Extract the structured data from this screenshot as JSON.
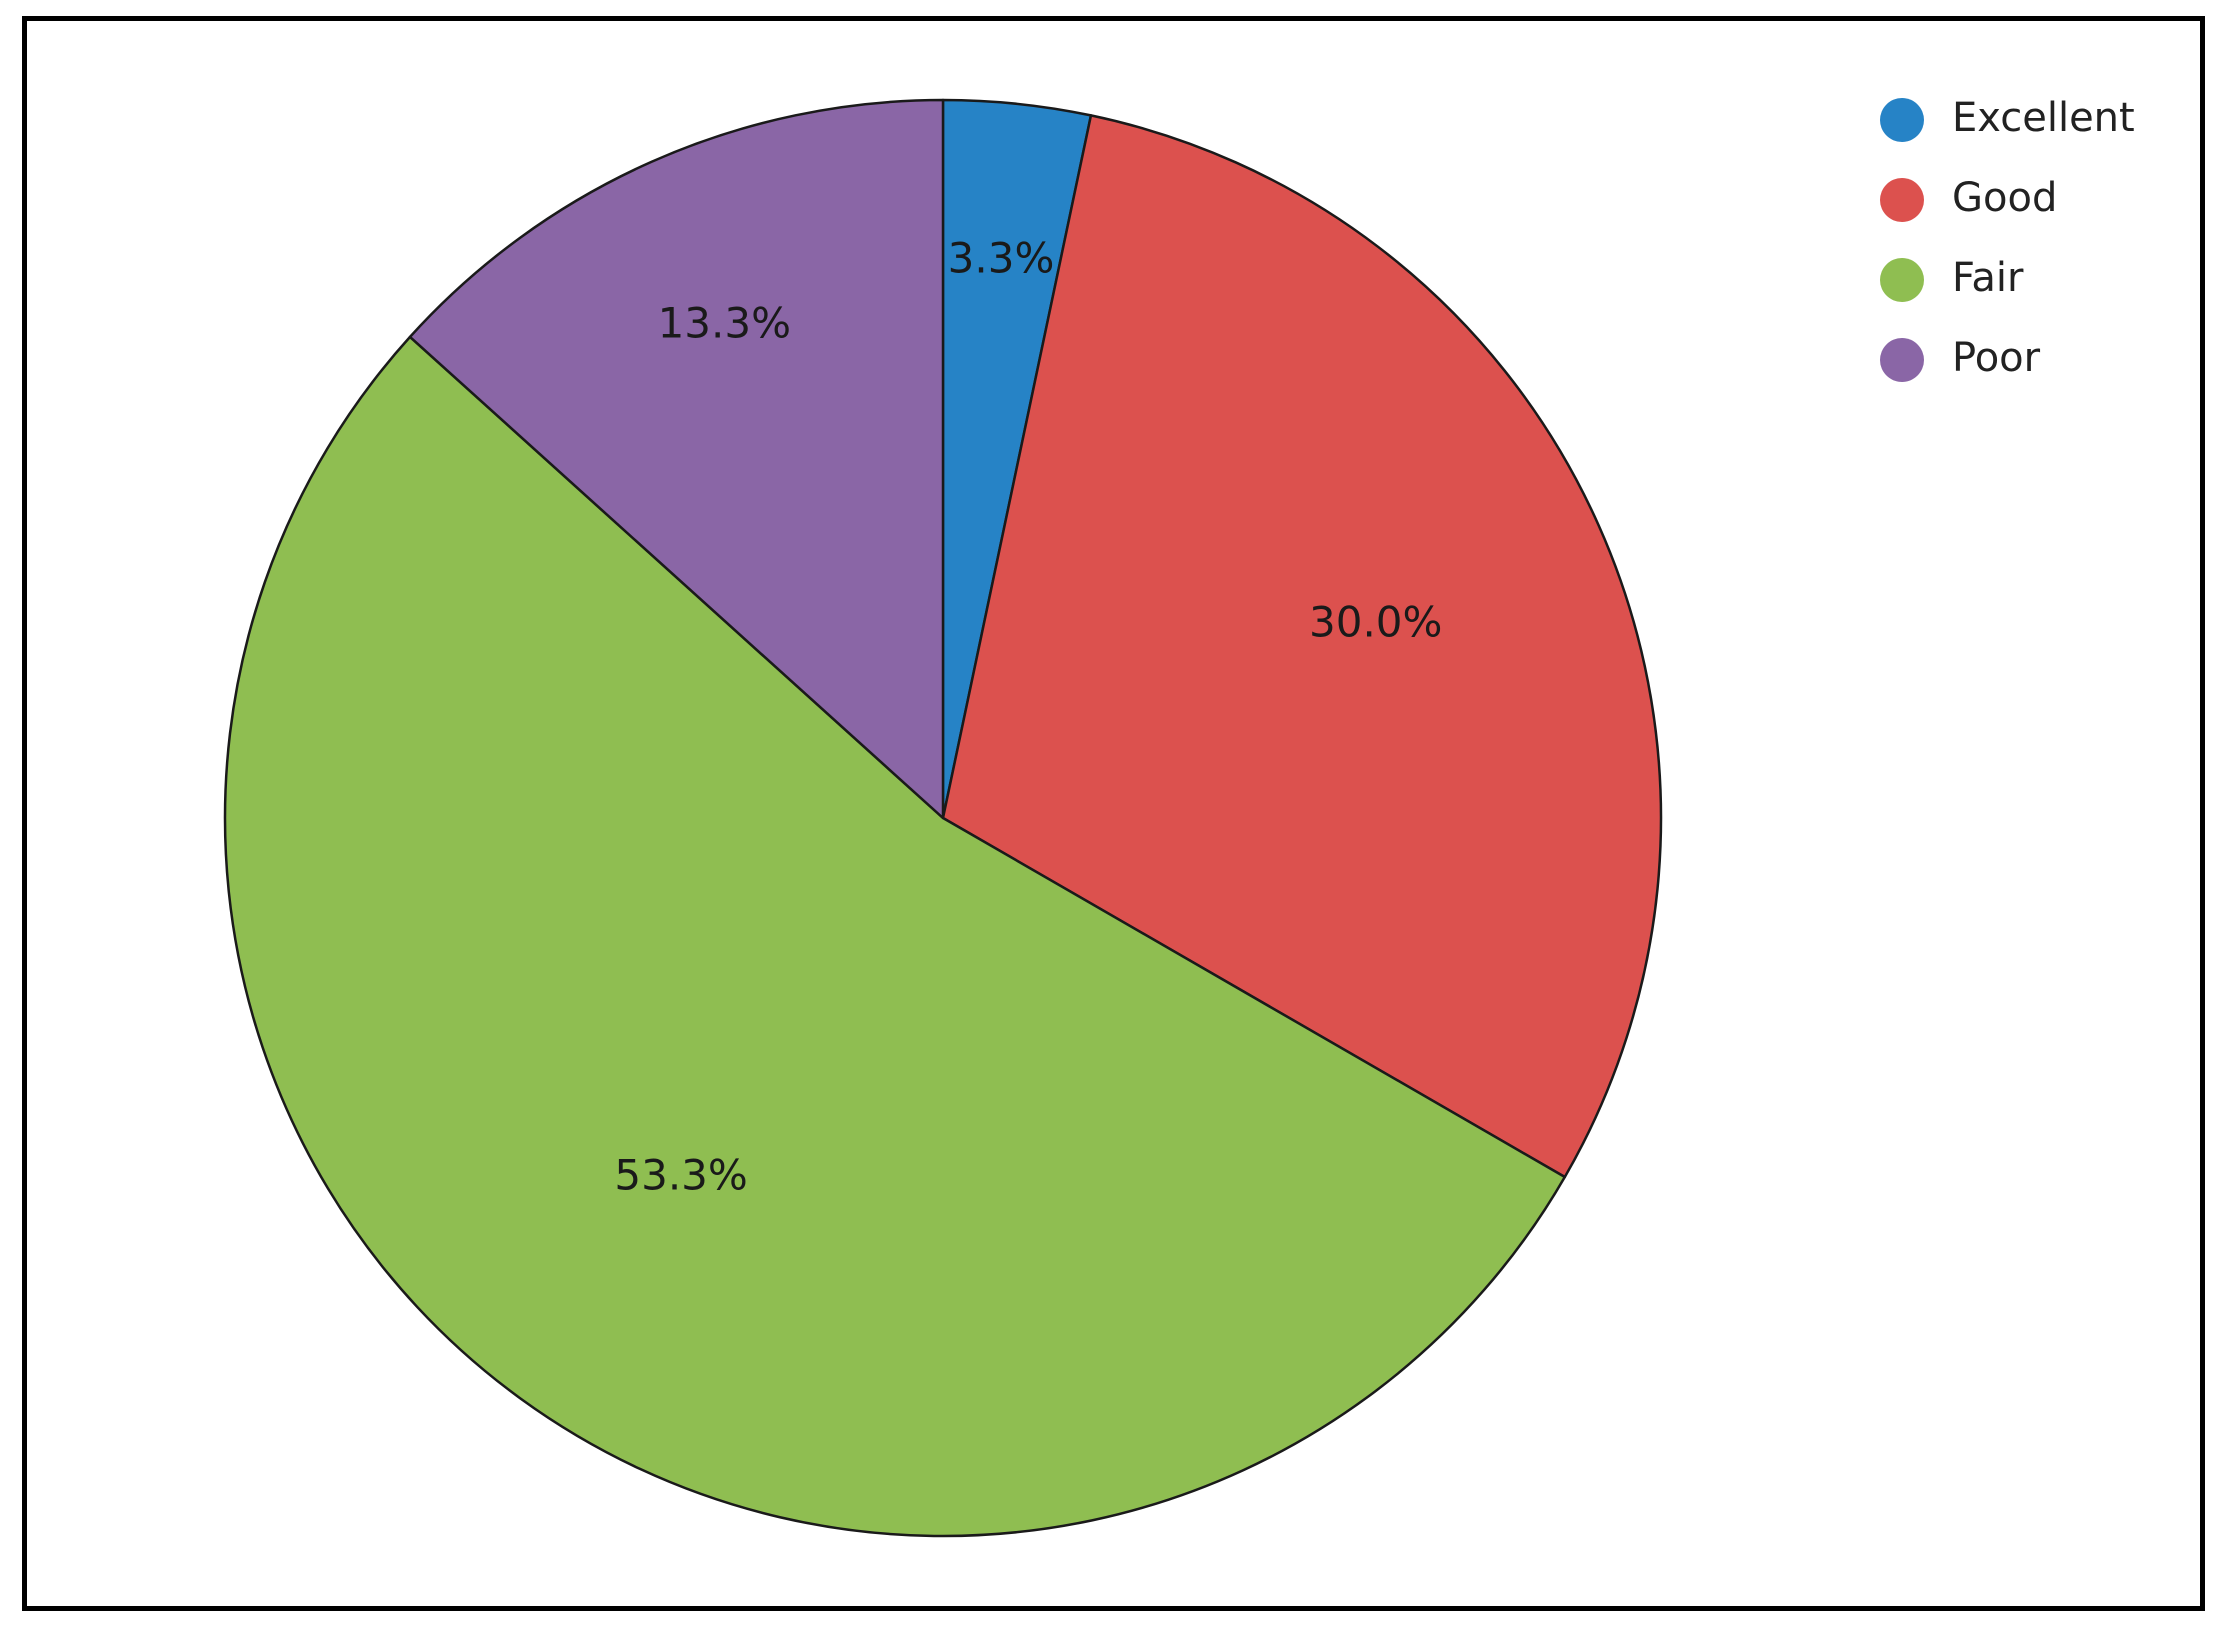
{
  "chart_data": {
    "type": "pie",
    "categories": [
      "Excellent",
      "Good",
      "Fair",
      "Poor"
    ],
    "values": [
      3.3,
      30.0,
      53.3,
      13.3
    ],
    "labels": [
      "3.3%",
      "30.0%",
      "53.3%",
      "13.3%"
    ],
    "colors": [
      "#2683c6",
      "#dc514e",
      "#8fbe51",
      "#8a66a6"
    ],
    "start_angle": "12 o'clock",
    "direction": "clockwise",
    "legend": {
      "position": "top-right",
      "marker": "circle"
    }
  }
}
